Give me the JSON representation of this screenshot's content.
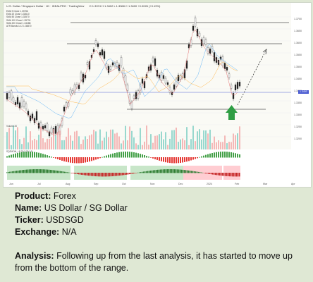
{
  "chart_header": {
    "title": "U.S. Dollar / Singapore Dollar · 1D · IDEALPRO · TradingView",
    "ohlc": "O 1.3374  H 1.3402  L 1.3368  C 1.3400  +0.0026 (+0.19%)"
  },
  "indicator_legend": [
    "EMA 9 Close 1.33756",
    "EMA 20 Close 1.33610",
    "SMA 50 Close 1.33570",
    "SMA 100 Close 1.35731",
    "SMA 200 Close 1.34488",
    "ATR Bands 14 2 1.35870"
  ],
  "oscillator_label": "SQZMOM_LB 20 2 20 1.5",
  "volume_label": "Volume 20",
  "price_scale": {
    "labels": [
      "1.3700",
      "1.3650",
      "1.3600",
      "1.3550",
      "1.3500",
      "1.3450",
      "1.3400",
      "1.3350",
      "1.3300",
      "1.3250",
      "1.3200"
    ],
    "current": "1.3400"
  },
  "time_axis": [
    "Jun",
    "Jul",
    "Aug",
    "Sep",
    "Oct",
    "Nov",
    "Dec",
    "2024",
    "Feb",
    "Mar",
    "Apr"
  ],
  "post": {
    "product_label": "Product:",
    "product_value": "Forex",
    "name_label": "Name:",
    "name_value": "US Dollar / SG Dollar",
    "ticker_label": "Ticker:",
    "ticker_value": "USDSGD",
    "exchange_label": "Exchange:",
    "exchange_value": "N/A",
    "analysis_label": "Analysis:",
    "analysis_value": "Following up from the last analysis, it has started to move up from the bottom of the range."
  },
  "colors": {
    "up_candle": "#ffffff",
    "down_candle": "#222222",
    "range_line": "#555555",
    "arrow": "#2f9e44",
    "price_line": "#4a5bd1",
    "volume_up": "#7fd0c4",
    "volume_down": "#f2a7a7"
  }
}
